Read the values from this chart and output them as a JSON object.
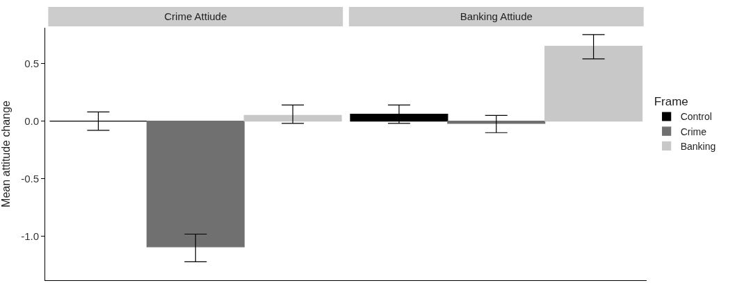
{
  "chart_data": {
    "type": "bar",
    "ylabel": "Mean attitude change",
    "categories": [
      "Crime Attiude",
      "Banking Attiude"
    ],
    "ylim": [
      -1.38,
      0.81
    ],
    "yticks": [
      {
        "value": -1.0,
        "label": "-1.0"
      },
      {
        "value": -0.5,
        "label": "-0.5"
      },
      {
        "value": 0.0,
        "label": "0.0"
      },
      {
        "value": 0.5,
        "label": "0.5"
      }
    ],
    "legend": "right",
    "legend_title": "Frame",
    "series": [
      {
        "name": "Control",
        "color": "#000000",
        "values": [
          0.0,
          0.06
        ],
        "errors": [
          [
            -0.08,
            0.08
          ],
          [
            -0.02,
            0.14
          ]
        ]
      },
      {
        "name": "Crime",
        "color": "#707070",
        "values": [
          -1.09,
          -0.02
        ],
        "errors": [
          [
            -1.22,
            -0.98
          ],
          [
            -0.1,
            0.05
          ]
        ]
      },
      {
        "name": "Banking",
        "color": "#c8c8c8",
        "values": [
          0.05,
          0.65
        ],
        "errors": [
          [
            -0.02,
            0.14
          ],
          [
            0.54,
            0.75
          ]
        ]
      }
    ]
  }
}
